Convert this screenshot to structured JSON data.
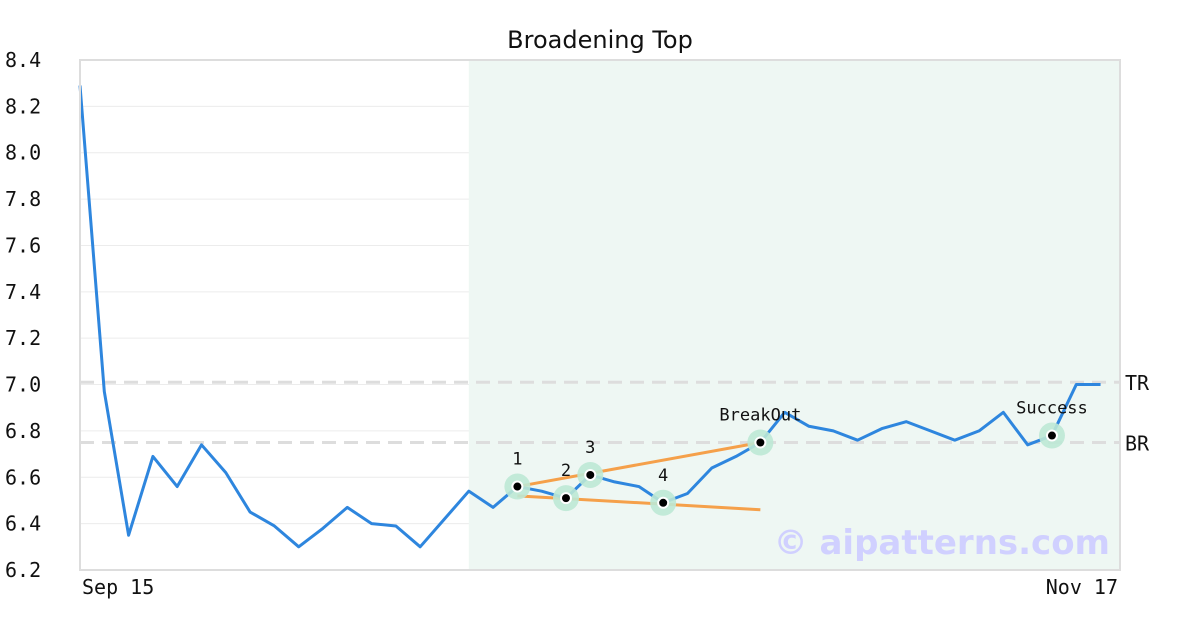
{
  "chart_data": {
    "type": "line",
    "title": "Broadening Top",
    "xlabel": "",
    "ylabel": "",
    "ylim": [
      6.2,
      8.4
    ],
    "yticks": [
      "6.2",
      "6.4",
      "6.6",
      "6.8",
      "7.0",
      "7.2",
      "7.4",
      "7.6",
      "7.8",
      "8.0",
      "8.2",
      "8.4"
    ],
    "x_tick_labels": {
      "start": "Sep 15",
      "end": "Nov 17"
    },
    "grid": true,
    "colors": {
      "line": "#2e86de",
      "trendline": "#f5a04a",
      "highlight": "#eef7f3",
      "marker_halo": "#bde8d5",
      "marker_dot": "#000000",
      "reference": "#dddddd",
      "axis": "#dddddd",
      "watermark": "#d0d0ff"
    },
    "series": [
      {
        "values": [
          8.29,
          6.97,
          6.35,
          6.69,
          6.56,
          6.74,
          6.62,
          6.45,
          6.39,
          6.3,
          6.38,
          6.47,
          6.4,
          6.39,
          6.3,
          6.42,
          6.54,
          6.47,
          6.56,
          6.54,
          6.51,
          6.61,
          6.58,
          6.56,
          6.49,
          6.53,
          6.64,
          6.69,
          6.75,
          6.88,
          6.82,
          6.8,
          6.76,
          6.81,
          6.84,
          6.8,
          6.76,
          6.8,
          6.88,
          6.74,
          6.78,
          7.0,
          7.0
        ]
      }
    ],
    "highlight_range": [
      16,
      42.8
    ],
    "reference_lines": [
      {
        "label": "TR",
        "value": 7.01
      },
      {
        "label": "BR",
        "value": 6.75
      }
    ],
    "trendlines": [
      {
        "from": [
          18,
          6.56
        ],
        "to": [
          28,
          6.75
        ]
      },
      {
        "from": [
          18,
          6.52
        ],
        "to": [
          28,
          6.46
        ]
      }
    ],
    "points": [
      {
        "label": "1",
        "x": 18,
        "y": 6.56
      },
      {
        "label": "2",
        "x": 20,
        "y": 6.51
      },
      {
        "label": "3",
        "x": 21,
        "y": 6.61
      },
      {
        "label": "4",
        "x": 24,
        "y": 6.49
      },
      {
        "label": "BreakOut",
        "x": 28,
        "y": 6.75
      },
      {
        "label": "Success",
        "x": 40,
        "y": 6.78
      }
    ],
    "watermark": "© aipatterns.com"
  }
}
